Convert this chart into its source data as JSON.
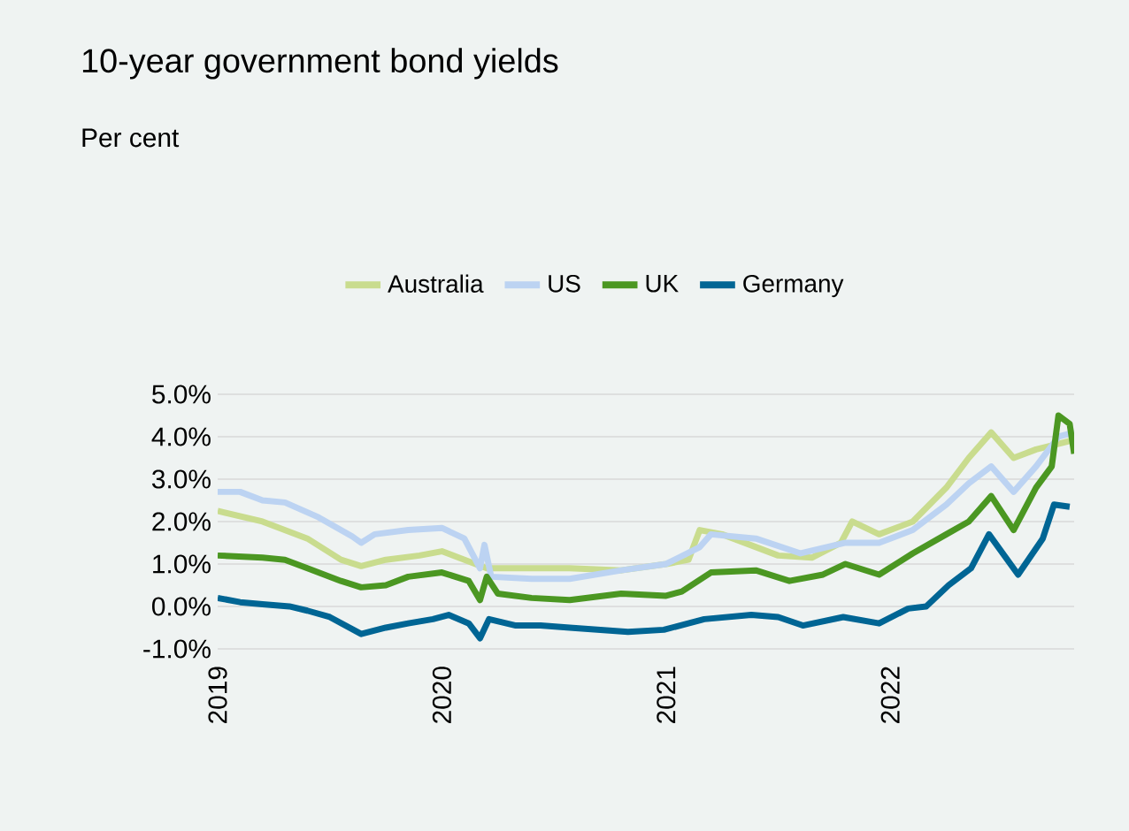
{
  "chart_data": {
    "type": "line",
    "title": "10-year government bond yields",
    "subtitle": "Per cent",
    "series": [
      {
        "name": "Australia",
        "color": "#c9dc8e",
        "x": [
          2019.0,
          2019.2,
          2019.4,
          2019.55,
          2019.64,
          2019.75,
          2019.9,
          2020.0,
          2020.15,
          2020.2,
          2020.35,
          2020.57,
          2020.8,
          2021.0,
          2021.1,
          2021.15,
          2021.25,
          2021.5,
          2021.65,
          2021.78,
          2021.83,
          2021.95,
          2022.1,
          2022.25,
          2022.35,
          2022.45,
          2022.55,
          2022.65,
          2022.8
        ],
        "values": [
          2.25,
          2.0,
          1.6,
          1.1,
          0.95,
          1.1,
          1.2,
          1.3,
          1.0,
          0.9,
          0.9,
          0.9,
          0.85,
          1.0,
          1.1,
          1.8,
          1.7,
          1.2,
          1.15,
          1.5,
          2.0,
          1.7,
          2.0,
          2.8,
          3.5,
          4.1,
          3.5,
          3.7,
          3.9
        ]
      },
      {
        "name": "US",
        "color": "#bcd3f2",
        "x": [
          2019.0,
          2019.1,
          2019.2,
          2019.3,
          2019.45,
          2019.6,
          2019.64,
          2019.7,
          2019.85,
          2020.0,
          2020.1,
          2020.17,
          2020.19,
          2020.22,
          2020.4,
          2020.57,
          2020.8,
          2021.0,
          2021.15,
          2021.2,
          2021.4,
          2021.6,
          2021.8,
          2021.95,
          2022.1,
          2022.25,
          2022.35,
          2022.45,
          2022.55,
          2022.65,
          2022.75,
          2022.82
        ],
        "values": [
          2.7,
          2.7,
          2.5,
          2.45,
          2.1,
          1.65,
          1.5,
          1.7,
          1.8,
          1.85,
          1.6,
          0.9,
          1.45,
          0.7,
          0.65,
          0.65,
          0.85,
          1.0,
          1.4,
          1.7,
          1.6,
          1.25,
          1.5,
          1.5,
          1.8,
          2.4,
          2.9,
          3.3,
          2.7,
          3.3,
          4.0,
          4.1
        ]
      },
      {
        "name": "UK",
        "color": "#4b9722",
        "x": [
          2019.0,
          2019.2,
          2019.3,
          2019.4,
          2019.55,
          2019.64,
          2019.75,
          2019.85,
          2020.0,
          2020.12,
          2020.17,
          2020.2,
          2020.25,
          2020.4,
          2020.57,
          2020.8,
          2021.0,
          2021.07,
          2021.2,
          2021.4,
          2021.55,
          2021.7,
          2021.8,
          2021.95,
          2022.1,
          2022.25,
          2022.35,
          2022.45,
          2022.55,
          2022.65,
          2022.72,
          2022.75,
          2022.8,
          2022.82
        ],
        "values": [
          1.2,
          1.15,
          1.1,
          0.9,
          0.6,
          0.45,
          0.5,
          0.7,
          0.8,
          0.6,
          0.15,
          0.7,
          0.3,
          0.2,
          0.15,
          0.3,
          0.25,
          0.35,
          0.8,
          0.85,
          0.6,
          0.75,
          1.0,
          0.75,
          1.25,
          1.7,
          2.0,
          2.6,
          1.8,
          2.8,
          3.3,
          4.5,
          4.3,
          3.6
        ]
      },
      {
        "name": "Germany",
        "color": "#006594",
        "x": [
          2019.0,
          2019.1,
          2019.2,
          2019.32,
          2019.4,
          2019.5,
          2019.64,
          2019.75,
          2019.85,
          2019.96,
          2020.03,
          2020.12,
          2020.17,
          2020.21,
          2020.33,
          2020.44,
          2020.57,
          2020.83,
          2020.99,
          2021.17,
          2021.38,
          2021.5,
          2021.61,
          2021.79,
          2021.95,
          2022.08,
          2022.16,
          2022.26,
          2022.36,
          2022.44,
          2022.57,
          2022.68,
          2022.73,
          2022.8
        ],
        "values": [
          0.2,
          0.1,
          0.05,
          0.0,
          -0.1,
          -0.25,
          -0.65,
          -0.5,
          -0.4,
          -0.3,
          -0.2,
          -0.4,
          -0.75,
          -0.3,
          -0.45,
          -0.45,
          -0.5,
          -0.6,
          -0.55,
          -0.3,
          -0.2,
          -0.25,
          -0.45,
          -0.25,
          -0.4,
          -0.05,
          0.0,
          0.5,
          0.9,
          1.7,
          0.75,
          1.6,
          2.4,
          2.35
        ]
      }
    ],
    "xlim": [
      2019,
      2022.82
    ],
    "xticks": [
      2019,
      2020,
      2021,
      2022
    ],
    "ylim": [
      -1,
      5
    ],
    "yticks": [
      {
        "value": 5,
        "label": "5.0%"
      },
      {
        "value": 4,
        "label": "4.0%"
      },
      {
        "value": 3,
        "label": "3.0%"
      },
      {
        "value": 2,
        "label": "2.0%"
      },
      {
        "value": 1,
        "label": "1.0%"
      },
      {
        "value": 0,
        "label": "0.0%"
      },
      {
        "value": -1,
        "label": "-1.0%"
      }
    ],
    "grid": "y",
    "legend": "top",
    "marker": "none",
    "line_style": "solid"
  }
}
